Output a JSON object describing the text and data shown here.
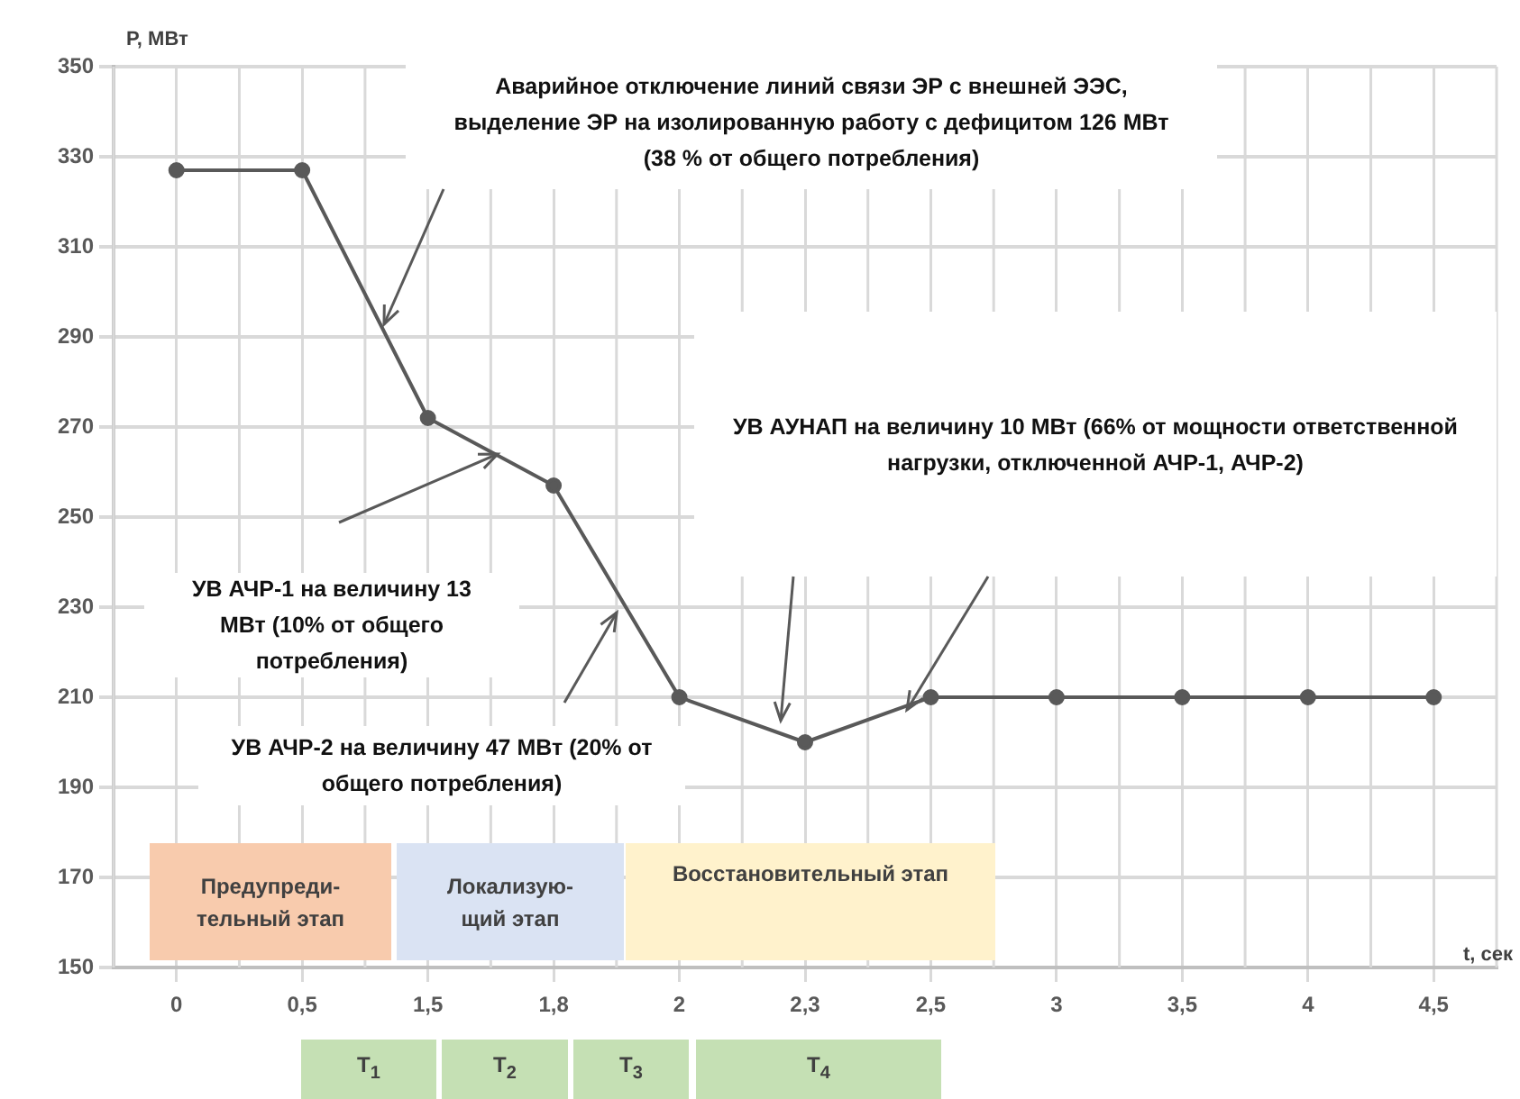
{
  "chart_data": {
    "type": "line",
    "ylabel": "P, МВт",
    "xlabel": "t, сек",
    "categories": [
      "0",
      "0,5",
      "1,5",
      "1,8",
      "2",
      "2,3",
      "2,5",
      "3",
      "3,5",
      "4",
      "4,5"
    ],
    "series": [
      {
        "color": "#595959",
        "values": [
          327,
          327,
          272,
          257,
          210,
          200,
          210,
          210,
          210,
          210,
          210
        ]
      }
    ],
    "ylim": [
      150,
      350
    ],
    "yticks": [
      150,
      170,
      190,
      210,
      230,
      250,
      270,
      290,
      310,
      330,
      350
    ],
    "grid": true,
    "legend": false,
    "marker": "circle",
    "line_style": "solid",
    "annotations": [
      "Аварийное отключение линий связи ЭР с внешней ЭЭС, выделение ЭР на изолированную работу с дефицитом 126 МВт (38 % от общего потребления)",
      "УВ АУНАП на величину 10 МВт (66% от мощности ответственной нагрузки, отключенной АЧР-1, АЧР-2)",
      "УВ АЧР-1 на величину 13 МВт (10% от общего потребления)",
      "УВ АЧР-2 на величину 47 МВт (20% от общего потребления)",
      "Предупреди-тельный этап",
      "Локализую-щий этап",
      "Восстановительный этап",
      "T$_{1}$",
      "T$_{2}$",
      "T$_{3}$",
      "T$_{4}$"
    ]
  }
}
